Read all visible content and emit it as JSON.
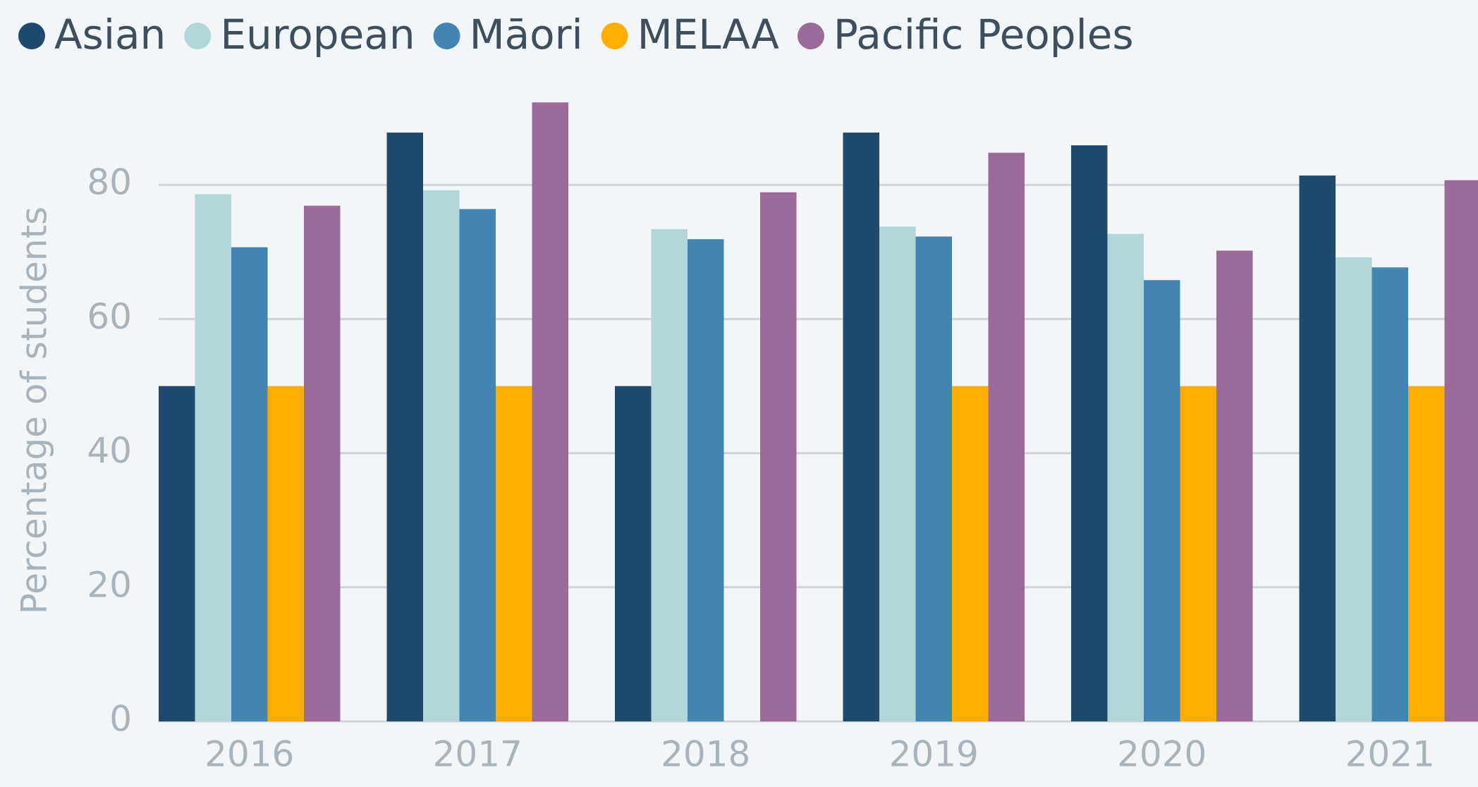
{
  "chart_data": {
    "type": "bar",
    "y_label": "Percentage of students",
    "categories": [
      "2016",
      "2017",
      "2018",
      "2019",
      "2020",
      "2021"
    ],
    "series": [
      {
        "name": "Asian",
        "color": "#1f4a6e",
        "values": [
          50,
          87.8,
          50,
          87.8,
          85.9,
          81.4
        ]
      },
      {
        "name": "European",
        "color": "#b3d7d9",
        "values": [
          78.6,
          79.2,
          73.4,
          73.8,
          72.7,
          69.2
        ]
      },
      {
        "name": "Māori",
        "color": "#4285b2",
        "values": [
          70.7,
          76.4,
          71.9,
          72.3,
          65.8,
          67.7
        ]
      },
      {
        "name": "MELAA",
        "color": "#ffad00",
        "values": [
          50,
          50,
          null,
          50,
          50,
          50
        ]
      },
      {
        "name": "Pacific Peoples",
        "color": "#9b6a98",
        "values": [
          76.9,
          92.3,
          78.9,
          84.8,
          70.2,
          80.7
        ]
      }
    ],
    "ylim": [
      0,
      100
    ],
    "yticks": [
      0,
      20,
      40,
      60,
      80
    ],
    "grid": true,
    "legend": "top"
  }
}
